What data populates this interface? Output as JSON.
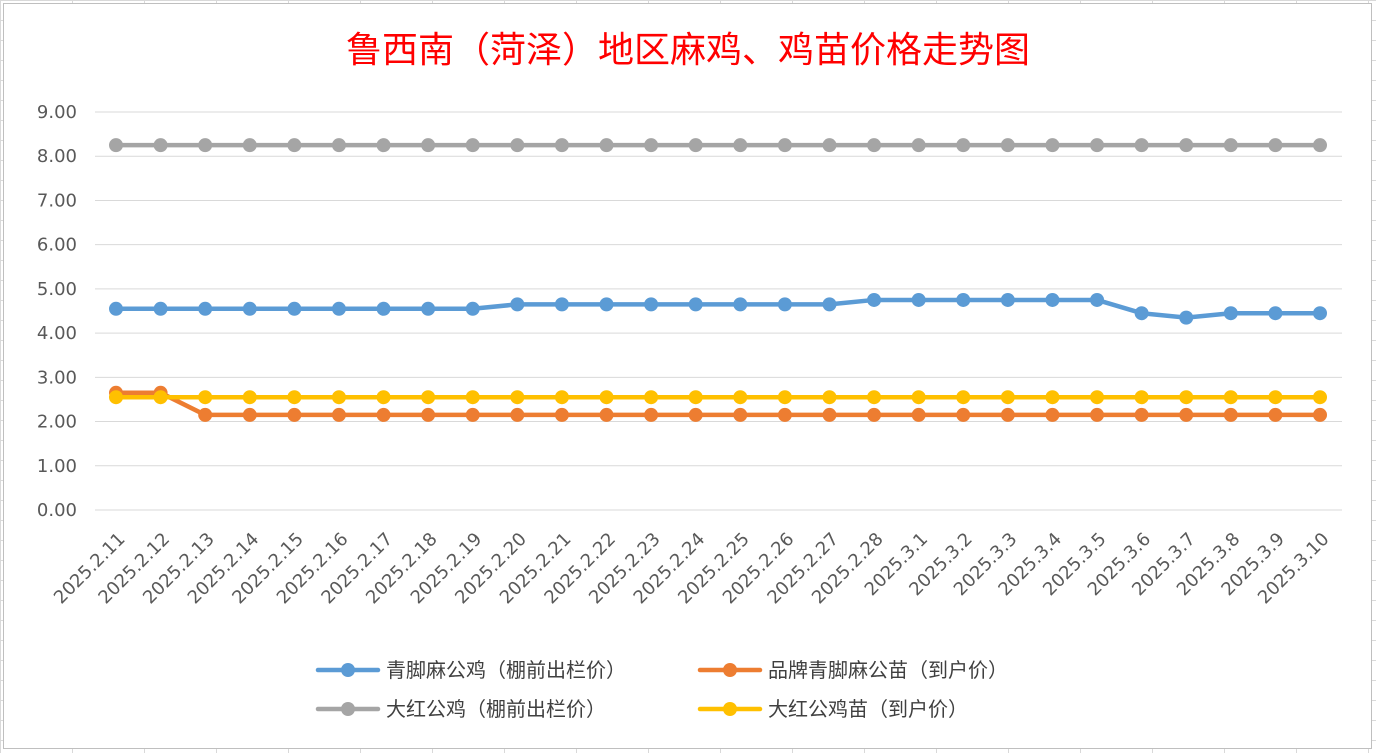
{
  "chart_data": {
    "type": "line",
    "title": "鲁西南（菏泽）地区麻鸡、鸡苗价格走势图",
    "xlabel": "",
    "ylabel": "",
    "ylim": [
      0,
      9
    ],
    "yticks": [
      "0.00",
      "1.00",
      "2.00",
      "3.00",
      "4.00",
      "5.00",
      "6.00",
      "7.00",
      "8.00",
      "9.00"
    ],
    "grid": true,
    "legend_position": "bottom",
    "categories": [
      "2025.2.11",
      "2025.2.12",
      "2025.2.13",
      "2025.2.14",
      "2025.2.15",
      "2025.2.16",
      "2025.2.17",
      "2025.2.18",
      "2025.2.19",
      "2025.2.20",
      "2025.2.21",
      "2025.2.22",
      "2025.2.23",
      "2025.2.24",
      "2025.2.25",
      "2025.2.26",
      "2025.2.27",
      "2025.2.28",
      "2025.3.1",
      "2025.3.2",
      "2025.3.3",
      "2025.3.4",
      "2025.3.5",
      "2025.3.6",
      "2025.3.7",
      "2025.3.8",
      "2025.3.9",
      "2025.3.10"
    ],
    "series": [
      {
        "name": "青脚麻公鸡（棚前出栏价）",
        "color": "#5b9bd5",
        "values": [
          4.55,
          4.55,
          4.55,
          4.55,
          4.55,
          4.55,
          4.55,
          4.55,
          4.55,
          4.65,
          4.65,
          4.65,
          4.65,
          4.65,
          4.65,
          4.65,
          4.65,
          4.75,
          4.75,
          4.75,
          4.75,
          4.75,
          4.75,
          4.45,
          4.35,
          4.45,
          4.45,
          4.45
        ]
      },
      {
        "name": "品牌青脚麻公苗（到户价）",
        "color": "#ed7d31",
        "values": [
          2.65,
          2.65,
          2.15,
          2.15,
          2.15,
          2.15,
          2.15,
          2.15,
          2.15,
          2.15,
          2.15,
          2.15,
          2.15,
          2.15,
          2.15,
          2.15,
          2.15,
          2.15,
          2.15,
          2.15,
          2.15,
          2.15,
          2.15,
          2.15,
          2.15,
          2.15,
          2.15,
          2.15
        ]
      },
      {
        "name": "大红公鸡（棚前出栏价）",
        "color": "#a5a5a5",
        "values": [
          8.25,
          8.25,
          8.25,
          8.25,
          8.25,
          8.25,
          8.25,
          8.25,
          8.25,
          8.25,
          8.25,
          8.25,
          8.25,
          8.25,
          8.25,
          8.25,
          8.25,
          8.25,
          8.25,
          8.25,
          8.25,
          8.25,
          8.25,
          8.25,
          8.25,
          8.25,
          8.25,
          8.25
        ]
      },
      {
        "name": "大红公鸡苗（到户价）",
        "color": "#ffc000",
        "values": [
          2.55,
          2.55,
          2.55,
          2.55,
          2.55,
          2.55,
          2.55,
          2.55,
          2.55,
          2.55,
          2.55,
          2.55,
          2.55,
          2.55,
          2.55,
          2.55,
          2.55,
          2.55,
          2.55,
          2.55,
          2.55,
          2.55,
          2.55,
          2.55,
          2.55,
          2.55,
          2.55,
          2.55
        ]
      }
    ]
  }
}
